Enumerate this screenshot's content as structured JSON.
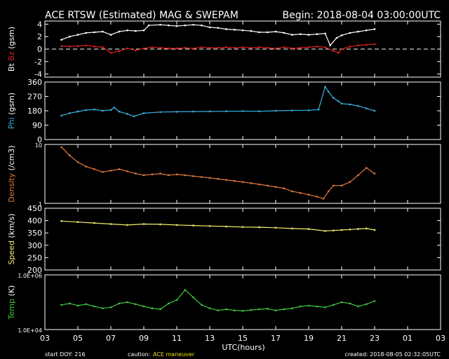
{
  "chart_data": {
    "type": "scatter",
    "title": "ACE RTSW (Estimated) MAG & SWEPAM",
    "begin_label": "Begin: 2018-08-04 03:00:00UTC",
    "xlabel": "UTC(hours)",
    "x_ticks": [
      "03",
      "05",
      "07",
      "09",
      "11",
      "13",
      "15",
      "17",
      "19",
      "21",
      "23",
      "01",
      "03"
    ],
    "x_range_hours": [
      0,
      24
    ],
    "footer": {
      "start": "start DOY: 216",
      "caution_prefix": "caution:",
      "caution_text": "ACE maneuver",
      "created": "created: 2018-08-05 02:32:05UTC"
    },
    "colors": {
      "background": "#000000",
      "frame": "#ffffff",
      "bt": "#ffffff",
      "bz": "#e02020",
      "phi": "#3ab0e0",
      "density": "#e07a3c",
      "speed": "#f0f070",
      "temp": "#40c840",
      "caution": "#f0e000"
    },
    "panels": [
      {
        "id": "mag",
        "ylabel_parts": [
          "Bt",
          "Bz",
          "(gsm)"
        ],
        "ylim": [
          -4.5,
          4.5
        ],
        "ticks": [
          "4",
          "2",
          "0",
          "-2",
          "-4"
        ],
        "tick_values": [
          4,
          2,
          0,
          -2,
          -4
        ],
        "zero_line": 0,
        "series": [
          {
            "name": "Bt",
            "points": [
              [
                1,
                1.5
              ],
              [
                1.5,
                2.0
              ],
              [
                2,
                2.3
              ],
              [
                2.5,
                2.6
              ],
              [
                3,
                2.7
              ],
              [
                3.5,
                2.8
              ],
              [
                4,
                2.3
              ],
              [
                4.5,
                2.8
              ],
              [
                5,
                3.0
              ],
              [
                5.5,
                2.9
              ],
              [
                6,
                3.0
              ],
              [
                6.3,
                3.8
              ],
              [
                7,
                3.9
              ],
              [
                7.5,
                3.8
              ],
              [
                8,
                3.7
              ],
              [
                8.5,
                3.8
              ],
              [
                9,
                3.9
              ],
              [
                9.5,
                3.8
              ],
              [
                10,
                3.5
              ],
              [
                10.5,
                3.4
              ],
              [
                11,
                3.2
              ],
              [
                11.5,
                3.1
              ],
              [
                12,
                3.0
              ],
              [
                12.5,
                2.9
              ],
              [
                13,
                2.7
              ],
              [
                13.5,
                2.7
              ],
              [
                14,
                2.8
              ],
              [
                14.5,
                2.6
              ],
              [
                15,
                2.3
              ],
              [
                15.5,
                2.4
              ],
              [
                16,
                2.3
              ],
              [
                16.5,
                2.4
              ],
              [
                17,
                2.5
              ],
              [
                17.3,
                0.6
              ],
              [
                17.7,
                1.8
              ],
              [
                18,
                2.2
              ],
              [
                18.5,
                2.6
              ],
              [
                19,
                2.8
              ],
              [
                19.5,
                3.0
              ],
              [
                20,
                3.2
              ]
            ]
          },
          {
            "name": "Bz",
            "points": [
              [
                1,
                0.5
              ],
              [
                1.5,
                0.4
              ],
              [
                2,
                0.5
              ],
              [
                2.5,
                0.6
              ],
              [
                3,
                0.4
              ],
              [
                3.5,
                0.3
              ],
              [
                4,
                -0.6
              ],
              [
                4.5,
                -0.3
              ],
              [
                5,
                0.1
              ],
              [
                5.5,
                -0.2
              ],
              [
                6,
                0.1
              ],
              [
                6.5,
                0.3
              ],
              [
                7,
                0.2
              ],
              [
                7.5,
                0.1
              ],
              [
                8,
                0.1
              ],
              [
                8.5,
                0.2
              ],
              [
                9,
                0.1
              ],
              [
                9.5,
                0.3
              ],
              [
                10,
                0.2
              ],
              [
                10.5,
                0.2
              ],
              [
                11,
                0.3
              ],
              [
                11.5,
                0.2
              ],
              [
                12,
                0.3
              ],
              [
                12.5,
                0.2
              ],
              [
                13,
                0.3
              ],
              [
                13.5,
                0.2
              ],
              [
                14,
                0.1
              ],
              [
                14.5,
                0.3
              ],
              [
                15,
                0.1
              ],
              [
                15.5,
                0.2
              ],
              [
                16,
                0.3
              ],
              [
                16.5,
                0.4
              ],
              [
                17,
                0.3
              ],
              [
                17.5,
                -0.3
              ],
              [
                17.8,
                -0.6
              ],
              [
                18,
                0.0
              ],
              [
                18.5,
                0.4
              ],
              [
                19,
                0.6
              ],
              [
                19.5,
                0.7
              ],
              [
                20,
                0.8
              ]
            ]
          }
        ]
      },
      {
        "id": "phi",
        "ylabel_parts": [
          "Phi",
          "(gsm)"
        ],
        "ylim": [
          0,
          360
        ],
        "ticks": [
          "360",
          "270",
          "180",
          "90",
          "0"
        ],
        "tick_values": [
          360,
          270,
          180,
          90,
          0
        ],
        "series": [
          {
            "name": "Phi",
            "points": [
              [
                1,
                150
              ],
              [
                1.5,
                165
              ],
              [
                2,
                175
              ],
              [
                2.5,
                185
              ],
              [
                3,
                188
              ],
              [
                3.5,
                180
              ],
              [
                4,
                185
              ],
              [
                4.2,
                200
              ],
              [
                4.5,
                175
              ],
              [
                5,
                160
              ],
              [
                5.4,
                145
              ],
              [
                6,
                165
              ],
              [
                7,
                172
              ],
              [
                8,
                174
              ],
              [
                9,
                175
              ],
              [
                10,
                176
              ],
              [
                11,
                177
              ],
              [
                12,
                178
              ],
              [
                13,
                177
              ],
              [
                14,
                180
              ],
              [
                15,
                182
              ],
              [
                16,
                183
              ],
              [
                16.6,
                188
              ],
              [
                17,
                330
              ],
              [
                17.2,
                300
              ],
              [
                17.5,
                260
              ],
              [
                17.8,
                240
              ],
              [
                18,
                225
              ],
              [
                18.5,
                220
              ],
              [
                19,
                210
              ],
              [
                19.5,
                195
              ],
              [
                20,
                180
              ]
            ]
          }
        ]
      },
      {
        "id": "density",
        "ylabel_parts": [
          "Density",
          "(/cm3)"
        ],
        "ylim": [
          1,
          10
        ],
        "scale": "log",
        "ticks": [
          "10",
          "1"
        ],
        "tick_values": [
          10,
          1
        ],
        "series": [
          {
            "name": "Density",
            "points": [
              [
                1,
                9
              ],
              [
                1.5,
                6.5
              ],
              [
                2,
                5
              ],
              [
                2.5,
                4.2
              ],
              [
                3,
                3.8
              ],
              [
                3.5,
                3.4
              ],
              [
                4,
                3.6
              ],
              [
                4.5,
                3.8
              ],
              [
                5,
                3.5
              ],
              [
                5.5,
                3.2
              ],
              [
                6,
                3.0
              ],
              [
                6.5,
                3.1
              ],
              [
                7,
                3.2
              ],
              [
                7.5,
                3.0
              ],
              [
                8,
                3.1
              ],
              [
                8.5,
                3.0
              ],
              [
                9,
                2.9
              ],
              [
                9.5,
                2.8
              ],
              [
                10,
                2.7
              ],
              [
                10.5,
                2.6
              ],
              [
                11,
                2.5
              ],
              [
                11.5,
                2.4
              ],
              [
                12,
                2.3
              ],
              [
                12.5,
                2.2
              ],
              [
                13,
                2.1
              ],
              [
                13.5,
                2.0
              ],
              [
                14,
                1.9
              ],
              [
                14.5,
                1.8
              ],
              [
                15,
                1.6
              ],
              [
                15.5,
                1.5
              ],
              [
                16,
                1.4
              ],
              [
                16.5,
                1.3
              ],
              [
                16.9,
                1.2
              ],
              [
                17.2,
                1.6
              ],
              [
                17.5,
                2.0
              ],
              [
                18,
                2.0
              ],
              [
                18.5,
                2.3
              ],
              [
                19,
                3.0
              ],
              [
                19.5,
                4.0
              ],
              [
                20,
                3.2
              ]
            ]
          }
        ]
      },
      {
        "id": "speed",
        "ylabel_parts": [
          "Speed",
          "(km/s)"
        ],
        "ylim": [
          200,
          450
        ],
        "ticks": [
          "450",
          "400",
          "350",
          "300",
          "250",
          "200"
        ],
        "tick_values": [
          450,
          400,
          350,
          300,
          250,
          200
        ],
        "series": [
          {
            "name": "Speed",
            "points": [
              [
                1,
                398
              ],
              [
                2,
                394
              ],
              [
                3,
                390
              ],
              [
                4,
                386
              ],
              [
                5,
                382
              ],
              [
                6,
                386
              ],
              [
                7,
                385
              ],
              [
                8,
                382
              ],
              [
                9,
                380
              ],
              [
                10,
                378
              ],
              [
                11,
                376
              ],
              [
                12,
                374
              ],
              [
                13,
                373
              ],
              [
                14,
                371
              ],
              [
                15,
                368
              ],
              [
                16,
                366
              ],
              [
                17,
                358
              ],
              [
                17.5,
                360
              ],
              [
                18,
                362
              ],
              [
                18.5,
                364
              ],
              [
                19,
                366
              ],
              [
                19.5,
                368
              ],
              [
                20,
                362
              ]
            ]
          }
        ]
      },
      {
        "id": "temp",
        "ylabel_parts": [
          "Temp",
          "(K)"
        ],
        "ylim": [
          10000,
          1000000
        ],
        "scale": "log",
        "ticks": [
          "1.0E+06",
          "1.0E+04"
        ],
        "tick_values": [
          1000000,
          10000
        ],
        "series": [
          {
            "name": "Temp",
            "points": [
              [
                1,
                80000
              ],
              [
                1.5,
                90000
              ],
              [
                2,
                75000
              ],
              [
                2.5,
                85000
              ],
              [
                3,
                70000
              ],
              [
                3.5,
                60000
              ],
              [
                4,
                65000
              ],
              [
                4.5,
                90000
              ],
              [
                5,
                100000
              ],
              [
                5.5,
                85000
              ],
              [
                6,
                70000
              ],
              [
                6.5,
                60000
              ],
              [
                7,
                55000
              ],
              [
                7.5,
                90000
              ],
              [
                8,
                120000
              ],
              [
                8.5,
                280000
              ],
              [
                9,
                150000
              ],
              [
                9.5,
                80000
              ],
              [
                10,
                60000
              ],
              [
                10.5,
                50000
              ],
              [
                11,
                55000
              ],
              [
                11.5,
                50000
              ],
              [
                12,
                48000
              ],
              [
                12.5,
                52000
              ],
              [
                13,
                55000
              ],
              [
                13.5,
                58000
              ],
              [
                14,
                50000
              ],
              [
                14.5,
                55000
              ],
              [
                15,
                60000
              ],
              [
                15.5,
                70000
              ],
              [
                16,
                75000
              ],
              [
                16.5,
                70000
              ],
              [
                17,
                65000
              ],
              [
                17.5,
                80000
              ],
              [
                18,
                100000
              ],
              [
                18.5,
                90000
              ],
              [
                19,
                70000
              ],
              [
                19.5,
                85000
              ],
              [
                20,
                110000
              ]
            ]
          }
        ]
      }
    ]
  }
}
